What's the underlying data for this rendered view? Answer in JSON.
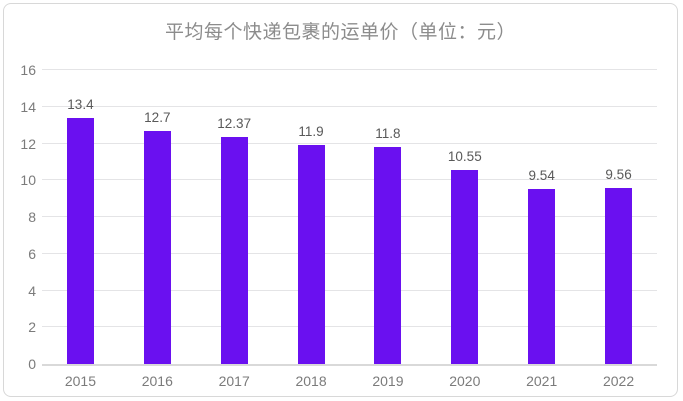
{
  "chart_data": {
    "type": "bar",
    "title": "平均每个快递包裹的运单价（单位：元）",
    "categories": [
      "2015",
      "2016",
      "2017",
      "2018",
      "2019",
      "2020",
      "2021",
      "2022"
    ],
    "values": [
      13.4,
      12.7,
      12.37,
      11.9,
      11.8,
      10.55,
      9.54,
      9.56
    ],
    "value_labels": [
      "13.4",
      "12.7",
      "12.37",
      "11.9",
      "11.8",
      "10.55",
      "9.54",
      "9.56"
    ],
    "xlabel": "",
    "ylabel": "",
    "ylim": [
      0,
      16
    ],
    "yticks": [
      0,
      2,
      4,
      6,
      8,
      10,
      12,
      14,
      16
    ],
    "grid": true,
    "legend": "none",
    "bar_color": "#6a10f0",
    "gridline_color": "#e4e4e6",
    "axis_line_color": "#d9d9d9",
    "title_color": "#8c8c8c",
    "tick_label_color": "#7b7b7b",
    "value_label_color": "#595959"
  }
}
